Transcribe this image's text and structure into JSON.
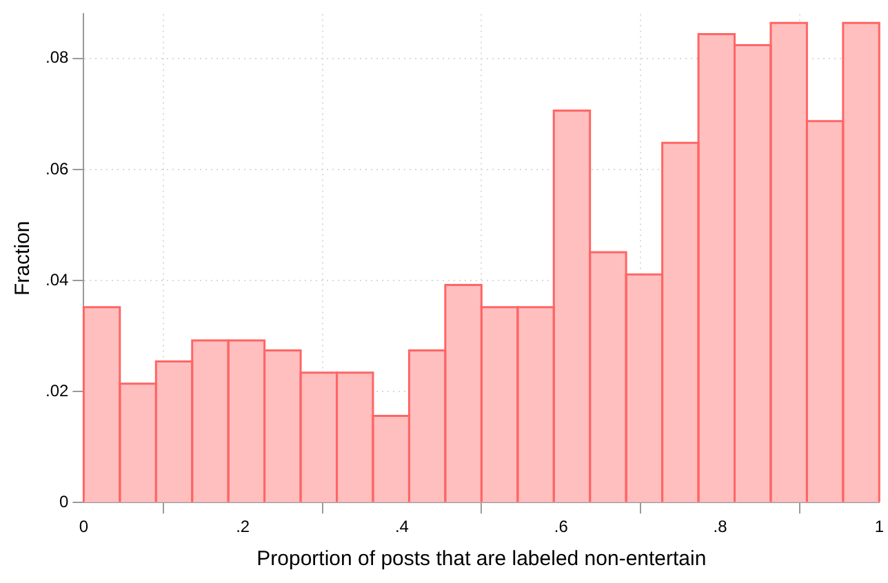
{
  "chart_data": {
    "type": "histogram",
    "xlabel": "Proportion of posts that are labeled non-entertain",
    "ylabel": "Fraction",
    "bins": [
      0,
      0.0455,
      0.0909,
      0.1364,
      0.1818,
      0.2273,
      0.2727,
      0.3182,
      0.3636,
      0.4091,
      0.4545,
      0.5,
      0.5455,
      0.5909,
      0.6364,
      0.6818,
      0.7273,
      0.7727,
      0.8182,
      0.8636,
      0.9091,
      0.9545,
      1
    ],
    "values": [
      0.0352,
      0.0214,
      0.0254,
      0.0292,
      0.0292,
      0.0274,
      0.0234,
      0.0234,
      0.0156,
      0.0274,
      0.0392,
      0.0352,
      0.0352,
      0.0706,
      0.0451,
      0.0411,
      0.0648,
      0.0844,
      0.0824,
      0.0864,
      0.0687,
      0.0864
    ],
    "color": "#ffbfbf",
    "xlim": [
      0,
      1
    ],
    "xticks": [
      0,
      {
        "value": 0.2,
        "label": ".2"
      },
      {
        "value": 0.4,
        "label": ".4"
      },
      {
        "value": 0.6,
        "label": ".6"
      },
      {
        "value": 0.8,
        "label": ".8"
      },
      1
    ],
    "ylim": [
      0,
      0.088
    ],
    "yticks": [
      0,
      {
        "value": 0.02,
        "label": ".02"
      },
      {
        "value": 0.04,
        "label": ".04"
      },
      {
        "value": 0.06,
        "label": ".06"
      },
      {
        "value": 0.08,
        "label": ".08"
      }
    ],
    "grid": true
  }
}
